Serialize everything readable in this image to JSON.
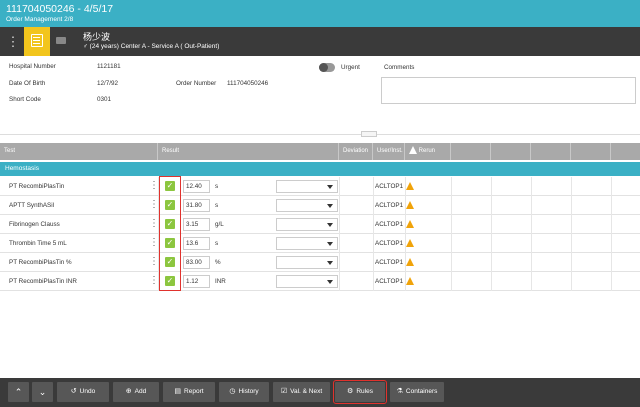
{
  "titlebar": {
    "title": "111704050246 - 4/5/17",
    "subtitle": "Order Management 2/8"
  },
  "patient": {
    "name": "杨少波",
    "info": "♂ (24 years)   Center A - Service A ( Out-Patient)"
  },
  "order": {
    "hospital_number_label": "Hospital Number",
    "hospital_number": "1121181",
    "dob_label": "Date Of Birth",
    "dob": "12/7/92",
    "short_code_label": "Short Code",
    "short_code": "0301",
    "order_number_label": "Order Number",
    "order_number": "111704050246",
    "urgent_label": "Urgent",
    "urgent_on": false,
    "comments_label": "Comments",
    "comments_value": ""
  },
  "grid": {
    "columns": [
      "Test",
      "Result",
      "Deviation",
      "User/Inst.",
      "Rerun"
    ],
    "group": "Hemostasis",
    "rows": [
      {
        "test": "PT RecombiPlasTin",
        "value": "12.40",
        "unit": "s",
        "inst": "ACLTOP1"
      },
      {
        "test": "APTT SynthASil",
        "value": "31.80",
        "unit": "s",
        "inst": "ACLTOP1"
      },
      {
        "test": "Fibrinogen Clauss",
        "value": "3.15",
        "unit": "g/L",
        "inst": "ACLTOP1"
      },
      {
        "test": "Thrombin Time 5 mL",
        "value": "13.6",
        "unit": "s",
        "inst": "ACLTOP1"
      },
      {
        "test": "PT RecombiPlasTin %",
        "value": "83.00",
        "unit": "%",
        "inst": "ACLTOP1"
      },
      {
        "test": "PT RecombiPlasTin INR",
        "value": "1.12",
        "unit": "INR",
        "inst": "ACLTOP1"
      }
    ]
  },
  "toolbar": {
    "undo": "Undo",
    "add": "Add",
    "report": "Report",
    "history": "History",
    "val_next": "Val. & Next",
    "rules": "Rules",
    "containers": "Containers"
  },
  "colors": {
    "accent": "#3bb0c5",
    "highlight": "#8cc63f",
    "warning": "#f0a30a",
    "toolbar": "#3a3a3a"
  }
}
